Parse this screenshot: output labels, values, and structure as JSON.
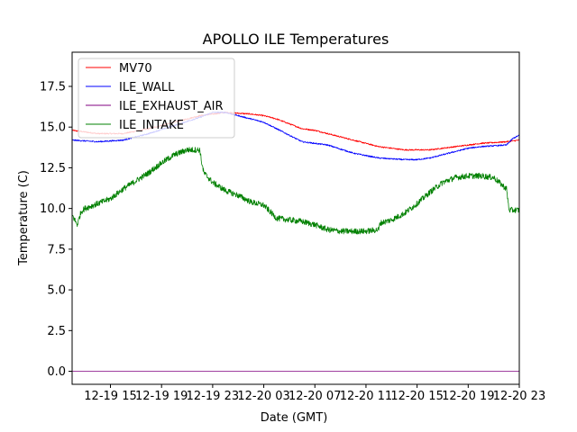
{
  "chart_data": {
    "type": "line",
    "title": "APOLLO ILE Temperatures",
    "xlabel": "Date (GMT)",
    "ylabel": "Temperature (C)",
    "x_unit": "hours since 12-19 12:00 GMT",
    "xlim": [
      0,
      35
    ],
    "ylim": [
      -0.8,
      19.6
    ],
    "grid": false,
    "legend_position": "top-left",
    "x_ticks": [
      {
        "value": 3,
        "label": "12-19 15"
      },
      {
        "value": 7,
        "label": "12-19 19"
      },
      {
        "value": 11,
        "label": "12-19 23"
      },
      {
        "value": 15,
        "label": "12-20 03"
      },
      {
        "value": 19,
        "label": "12-20 07"
      },
      {
        "value": 23,
        "label": "12-20 11"
      },
      {
        "value": 27,
        "label": "12-20 15"
      },
      {
        "value": 31,
        "label": "12-20 19"
      },
      {
        "value": 35,
        "label": "12-20 23"
      }
    ],
    "y_ticks": [
      {
        "value": 0.0,
        "label": "0.0"
      },
      {
        "value": 2.5,
        "label": "2.5"
      },
      {
        "value": 5.0,
        "label": "5.0"
      },
      {
        "value": 7.5,
        "label": "7.5"
      },
      {
        "value": 10.0,
        "label": "10.0"
      },
      {
        "value": 12.5,
        "label": "12.5"
      },
      {
        "value": 15.0,
        "label": "15.0"
      },
      {
        "value": 17.5,
        "label": "17.5"
      }
    ],
    "series": [
      {
        "name": "MV70",
        "color": "#ff0000",
        "noise": 0.04,
        "x": [
          0,
          2,
          4,
          6,
          8,
          10,
          12,
          14,
          15,
          16,
          17,
          18,
          19,
          20,
          22,
          24,
          26,
          28,
          30,
          32,
          34,
          35
        ],
        "y": [
          14.8,
          14.6,
          14.6,
          14.9,
          15.3,
          15.7,
          15.9,
          15.8,
          15.7,
          15.5,
          15.2,
          14.9,
          14.8,
          14.6,
          14.2,
          13.8,
          13.6,
          13.6,
          13.8,
          14.0,
          14.1,
          14.2
        ]
      },
      {
        "name": "ILE_WALL",
        "color": "#0000ff",
        "noise": 0.04,
        "x": [
          0,
          2,
          4,
          6,
          8,
          10,
          11,
          12,
          14,
          15,
          16,
          17,
          18,
          19,
          20,
          22,
          24,
          26,
          27,
          28,
          30,
          31,
          32,
          34,
          34.5,
          35
        ],
        "y": [
          14.2,
          14.1,
          14.2,
          14.6,
          15.1,
          15.6,
          15.9,
          15.9,
          15.5,
          15.3,
          14.9,
          14.5,
          14.1,
          14.0,
          13.9,
          13.4,
          13.1,
          13.0,
          13.0,
          13.1,
          13.5,
          13.7,
          13.8,
          13.9,
          14.3,
          14.5
        ]
      },
      {
        "name": "ILE_EXHAUST_AIR",
        "color": "#800080",
        "noise": 0,
        "x": [
          0,
          35
        ],
        "y": [
          0.0,
          0.0
        ]
      },
      {
        "name": "ILE_INTAKE",
        "color": "#008000",
        "noise": 0.18,
        "x": [
          0,
          0.4,
          0.7,
          1,
          2,
          3,
          4,
          5,
          6,
          7,
          8,
          9,
          10,
          10.1,
          10.3,
          11,
          12,
          13,
          14,
          15,
          16,
          17,
          18,
          19,
          20,
          21,
          22,
          23,
          24,
          24.1,
          25,
          26,
          27,
          28,
          29,
          30,
          31,
          32,
          33,
          34,
          34.2,
          35
        ],
        "y": [
          9.6,
          9.0,
          9.8,
          10.0,
          10.3,
          10.6,
          11.2,
          11.7,
          12.2,
          12.8,
          13.3,
          13.6,
          13.6,
          13.0,
          12.2,
          11.6,
          11.1,
          10.8,
          10.4,
          10.2,
          9.4,
          9.3,
          9.2,
          9.0,
          8.7,
          8.6,
          8.6,
          8.6,
          8.7,
          9.1,
          9.3,
          9.7,
          10.3,
          11.0,
          11.6,
          11.9,
          12.0,
          12.0,
          11.9,
          11.2,
          9.9,
          9.9
        ]
      }
    ]
  }
}
